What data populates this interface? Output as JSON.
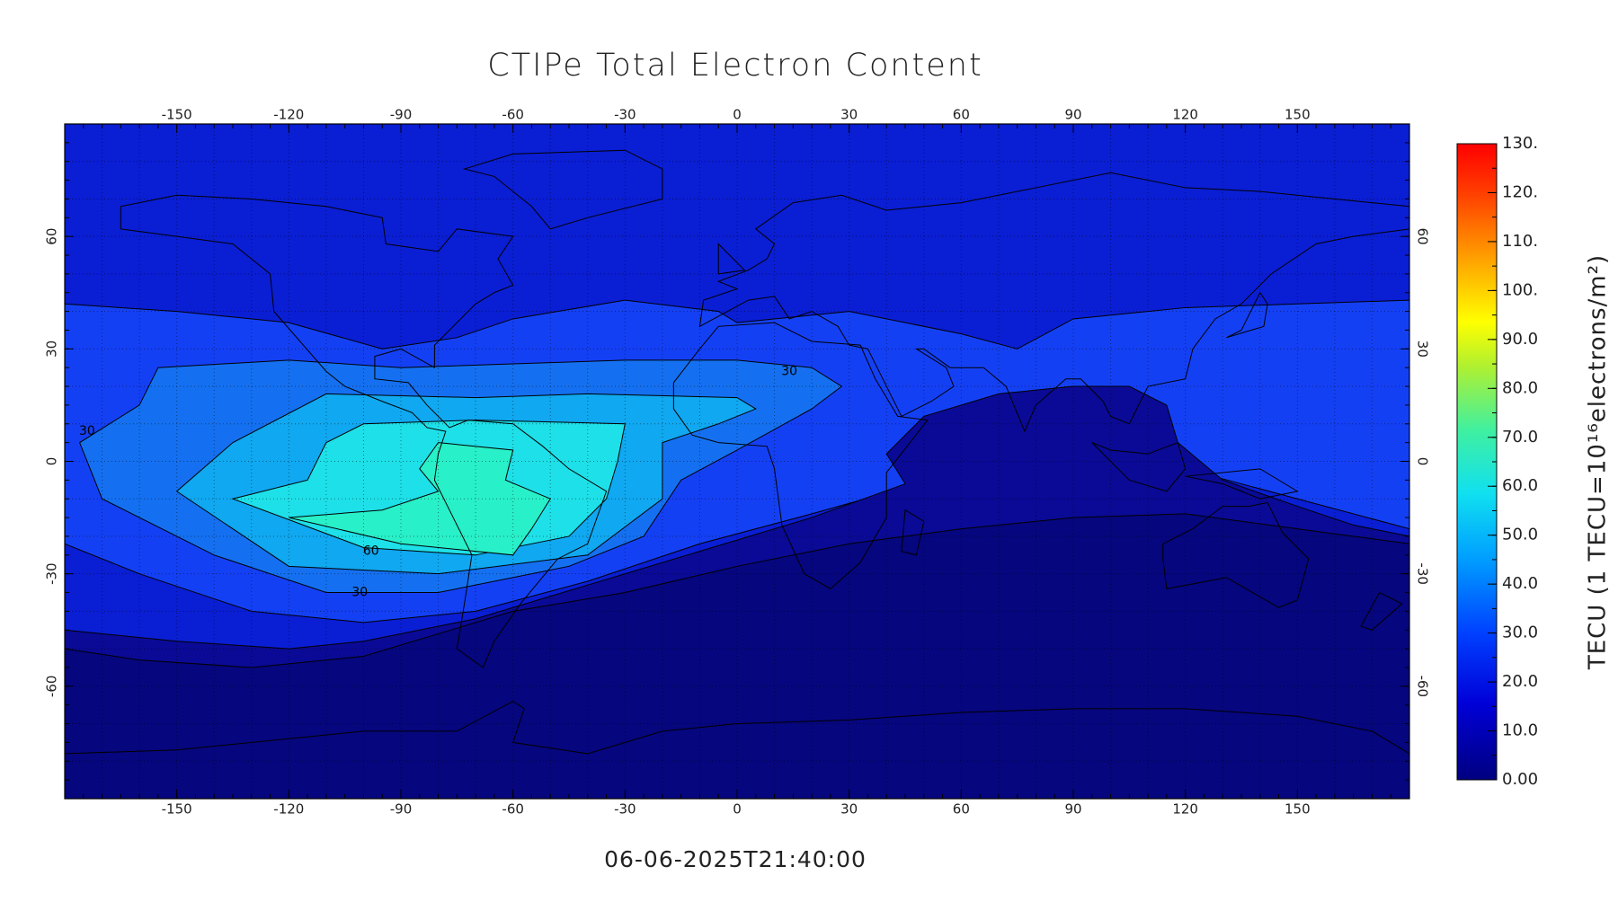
{
  "chart_data": {
    "type": "contour-map",
    "title": "CTIPe Total Electron Content",
    "subtitle": "06-06-2025T21:40:00",
    "xlim": [
      -180,
      180
    ],
    "ylim": [
      -90,
      90
    ],
    "xticks": [
      -150,
      -120,
      -90,
      -60,
      -30,
      0,
      30,
      60,
      90,
      120,
      150
    ],
    "yticks": [
      -60,
      -30,
      0,
      30,
      60
    ],
    "grid": true,
    "colorbar": {
      "label": "TECU (1 TECU=10¹⁶electrons/m²)",
      "clim": [
        0,
        130
      ],
      "ticks": [
        {
          "value": 0,
          "label": "0.00"
        },
        {
          "value": 10,
          "label": "10.0"
        },
        {
          "value": 20,
          "label": "20.0"
        },
        {
          "value": 30,
          "label": "30.0"
        },
        {
          "value": 40,
          "label": "40.0"
        },
        {
          "value": 50,
          "label": "50.0"
        },
        {
          "value": 60,
          "label": "60.0"
        },
        {
          "value": 70,
          "label": "70.0"
        },
        {
          "value": 80,
          "label": "80.0"
        },
        {
          "value": 90,
          "label": "90.0"
        },
        {
          "value": 100,
          "label": "100."
        },
        {
          "value": 110,
          "label": "110."
        },
        {
          "value": 120,
          "label": "120."
        },
        {
          "value": 130,
          "label": "130."
        }
      ]
    },
    "contour_labels": [
      30,
      30,
      60,
      30
    ]
  }
}
